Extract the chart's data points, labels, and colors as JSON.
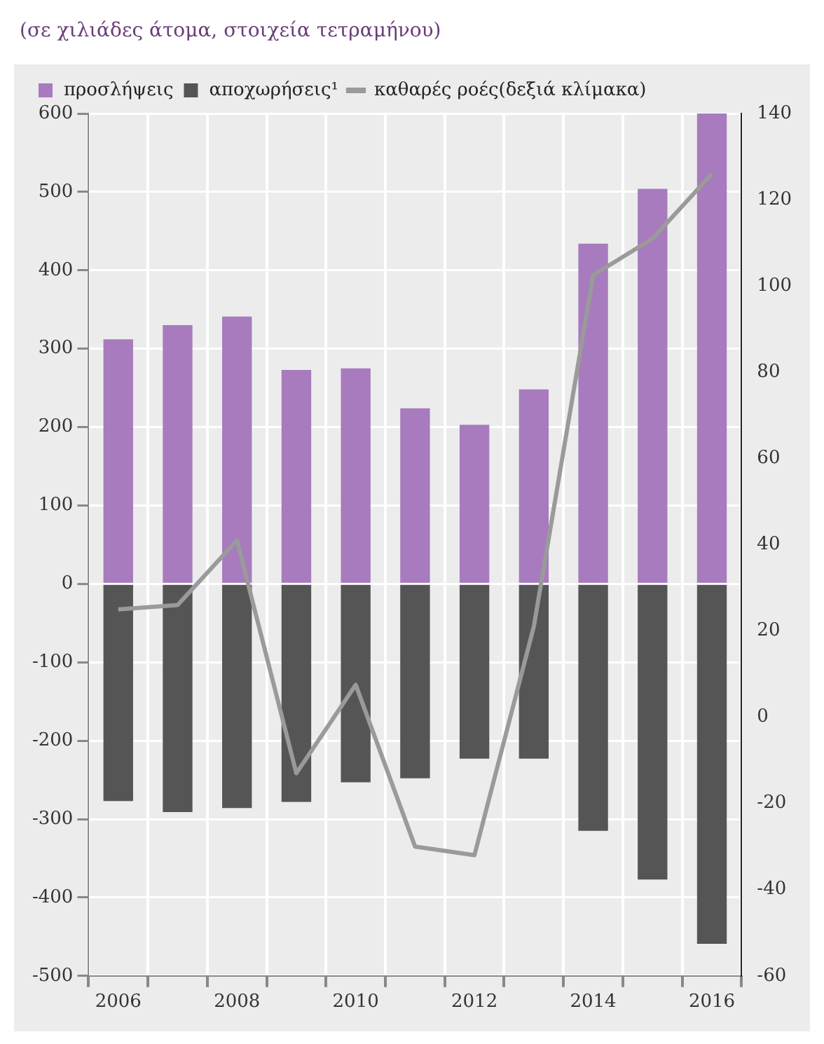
{
  "chart_data": {
    "type": "bar",
    "title": "(σε χιλιάδες άτομα, στοιχεία τετραμήνου)",
    "categories": [
      "2006",
      null,
      "2008",
      null,
      "2010",
      null,
      "2012",
      null,
      "2014",
      null,
      "2016"
    ],
    "stacked": true,
    "series": [
      {
        "name": "προσλήψεις",
        "color": "#a77bbd",
        "values": [
          312,
          330,
          341,
          273,
          275,
          224,
          203,
          248,
          434,
          504,
          600
        ]
      },
      {
        "name": "αποχωρήσεις¹",
        "color": "#555555",
        "values": [
          -277,
          -291,
          -286,
          -278,
          -253,
          -248,
          -223,
          -223,
          -315,
          -377,
          -459
        ]
      },
      {
        "name": "καθαρές ροές(δεξιά κλίμακα)",
        "type": "line",
        "axis": "y2",
        "color": "#9a9a9a",
        "values": [
          25,
          26,
          41,
          -13,
          7.5,
          -30,
          -32,
          21,
          102.5,
          111,
          126
        ]
      }
    ],
    "ylim": [
      -500,
      600
    ],
    "yticks": [
      -500,
      -400,
      -300,
      -200,
      -100,
      0,
      100,
      200,
      300,
      400,
      500,
      600
    ],
    "y2lim": [
      -60,
      140
    ],
    "y2ticks": [
      -60,
      -40,
      -20,
      0,
      20,
      40,
      60,
      80,
      100,
      120,
      140
    ],
    "grid": true,
    "legend": "top left",
    "marker": "none",
    "line_style": "solid"
  }
}
